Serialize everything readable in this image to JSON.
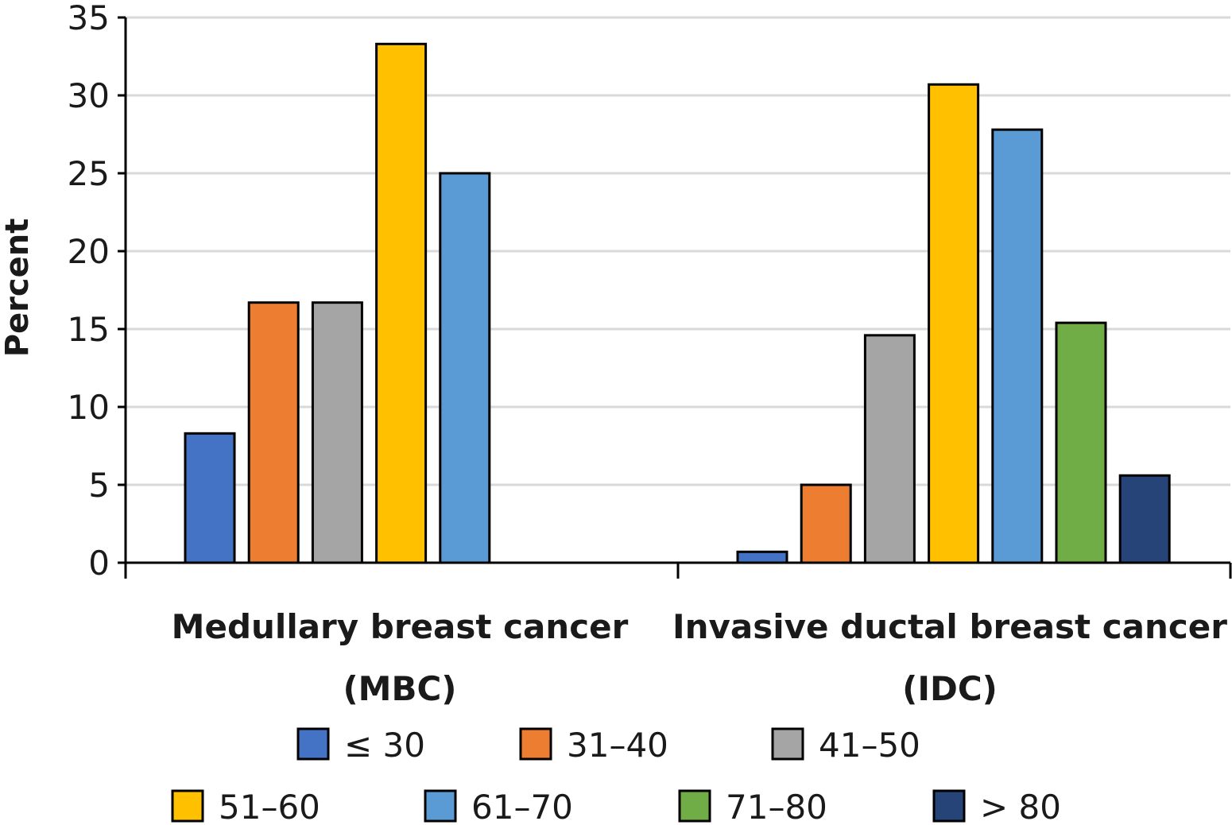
{
  "chart_data": {
    "type": "bar",
    "ylabel": "Percent",
    "ylim": [
      0,
      35
    ],
    "yticks": [
      0,
      5,
      10,
      15,
      20,
      25,
      30,
      35
    ],
    "grid": true,
    "legend_position": "bottom",
    "categories": [
      [
        "Medullary breast cancer",
        "(MBC)"
      ],
      [
        "Invasive ductal breast cancer",
        "(IDC)"
      ]
    ],
    "series": [
      {
        "name": "≤ 30",
        "color": "#4472C4",
        "values": [
          8.3,
          0.7
        ]
      },
      {
        "name": "31–40",
        "color": "#ED7D31",
        "values": [
          16.7,
          5.0
        ]
      },
      {
        "name": "41–50",
        "color": "#A5A5A5",
        "values": [
          16.7,
          14.6
        ]
      },
      {
        "name": "51–60",
        "color": "#FFC000",
        "values": [
          33.3,
          30.7
        ]
      },
      {
        "name": "61–70",
        "color": "#5B9BD5",
        "values": [
          25.0,
          27.8
        ]
      },
      {
        "name": "71–80",
        "color": "#70AD47",
        "values": [
          0,
          15.4
        ]
      },
      {
        "name": "> 80",
        "color": "#264478",
        "values": [
          0,
          5.6
        ]
      }
    ]
  }
}
